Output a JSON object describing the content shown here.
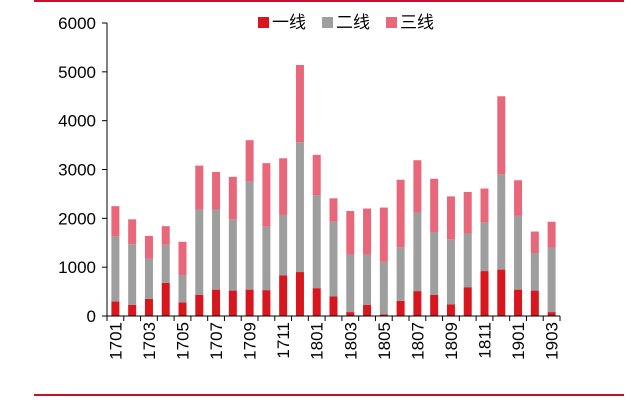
{
  "chart_data": {
    "type": "bar",
    "stacked": true,
    "x": [
      "1701",
      "1702",
      "1703",
      "1704",
      "1705",
      "1706",
      "1707",
      "1708",
      "1709",
      "1710",
      "1711",
      "1712",
      "1801",
      "1802",
      "1803",
      "1804",
      "1805",
      "1806",
      "1807",
      "1808",
      "1809",
      "1810",
      "1811",
      "1812",
      "1901",
      "1902",
      "1903"
    ],
    "x_tick_labels": [
      "1701",
      "1703",
      "1705",
      "1707",
      "1709",
      "1711",
      "1801",
      "1803",
      "1805",
      "1807",
      "1809",
      "1811",
      "1901",
      "1903"
    ],
    "series": [
      {
        "name": "一线",
        "color": "#d7161e",
        "values": [
          300,
          230,
          350,
          680,
          280,
          430,
          540,
          520,
          540,
          530,
          830,
          900,
          570,
          400,
          80,
          230,
          30,
          310,
          510,
          430,
          240,
          590,
          920,
          950,
          540,
          520,
          80
        ]
      },
      {
        "name": "二线",
        "color": "#9e9e9e",
        "values": [
          1330,
          1240,
          820,
          780,
          560,
          1750,
          1640,
          1460,
          2210,
          1300,
          1240,
          2660,
          1900,
          1530,
          1180,
          1030,
          1080,
          1100,
          1610,
          1290,
          1330,
          1100,
          990,
          1950,
          1510,
          770,
          1320
        ]
      },
      {
        "name": "三线",
        "color": "#e8677a",
        "values": [
          620,
          510,
          470,
          380,
          680,
          900,
          770,
          870,
          850,
          1300,
          1160,
          1580,
          830,
          480,
          890,
          940,
          1110,
          1380,
          1070,
          1090,
          880,
          850,
          700,
          1600,
          730,
          440,
          530
        ]
      }
    ],
    "ylim": [
      0,
      6000
    ],
    "yticks": [
      0,
      1000,
      2000,
      3000,
      4000,
      5000,
      6000
    ],
    "legend_position": "top-center",
    "grid": false,
    "title": "",
    "xlabel": "",
    "ylabel": ""
  }
}
